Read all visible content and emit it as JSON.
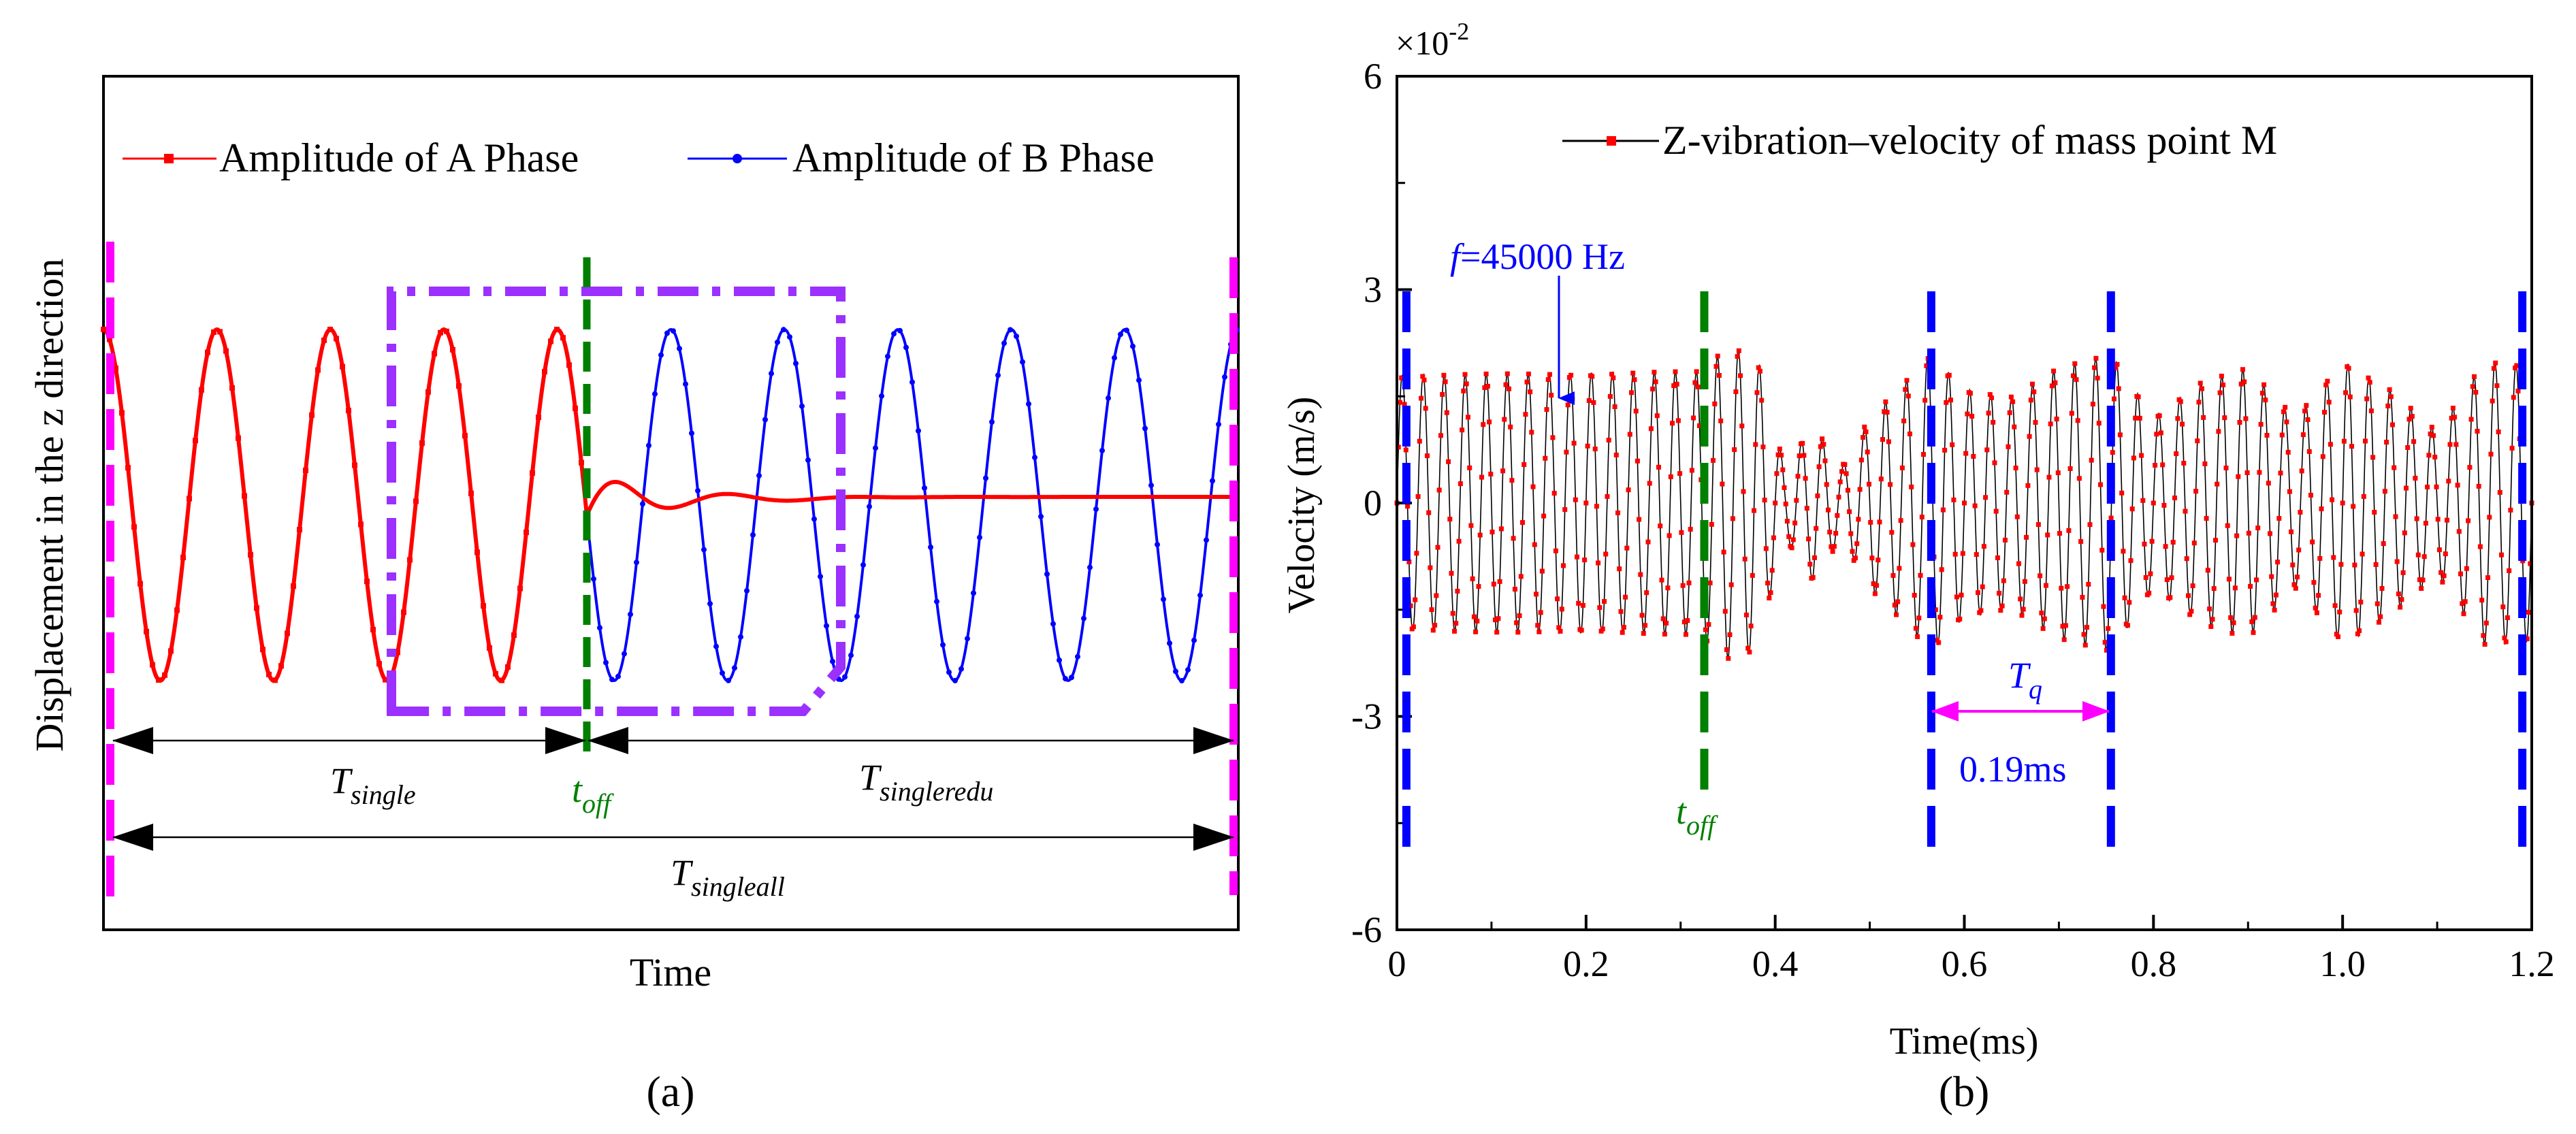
{
  "chart_data": [
    {
      "panel": "a",
      "type": "line",
      "xlabel": "Time",
      "ylabel": "Displacement in the z direction",
      "panel_label": "(a)",
      "legend_placement": "top",
      "series": [
        {
          "name": "Amplitude of A Phase",
          "color": "#ff0000",
          "marker": "square",
          "description_values": {
            "periods_before_off": 4,
            "phase_offset_periods": 0.75,
            "post_off_decay_cycles": 4
          }
        },
        {
          "name": "Amplitude of B Phase",
          "color": "#0000ff",
          "marker": "dot",
          "description_values": {
            "periods_total": 10
          }
        }
      ],
      "annotations": {
        "t_single": {
          "main": "T",
          "sub": "single"
        },
        "t_off": {
          "main": "t",
          "sub": "off"
        },
        "t_singleredu": {
          "main": "T",
          "sub": "singleredu"
        },
        "t_singleall": {
          "main": "T",
          "sub": "singleall"
        }
      },
      "colors": {
        "off_marker": "#008000",
        "box": "#9b30ff",
        "edge_marker": "#ff00ff",
        "arrow": "#000000"
      }
    },
    {
      "panel": "b",
      "type": "line",
      "xlabel": "Time(ms)",
      "ylabel": "Velocity (m/s)",
      "y_multiplier": "×10",
      "y_multiplier_exp": "-2",
      "panel_label": "(b)",
      "xlim": [
        0,
        1.2
      ],
      "ylim": [
        -6,
        6
      ],
      "x_ticks": [
        "0",
        "0.2",
        "0.4",
        "0.6",
        "0.8",
        "1.0",
        "1.2"
      ],
      "y_ticks": [
        "6",
        "3",
        "0",
        "-3",
        "-6"
      ],
      "x_tick_values": [
        0,
        0.2,
        0.4,
        0.6,
        0.8,
        1.0,
        1.2
      ],
      "y_tick_values": [
        6,
        3,
        0,
        -3,
        -6
      ],
      "series": [
        {
          "name": "Z-vibration–velocity of mass point M",
          "color": "#ff0000",
          "line_color": "#000000",
          "frequency_hz": 45000,
          "envelope": {
            "x": [
              0,
              0.32,
              0.35,
              0.38,
              0.41,
              0.44,
              0.47,
              0.5,
              0.53,
              0.565,
              0.6,
              0.65,
              0.7,
              0.755,
              0.8,
              0.85,
              0.9,
              0.95,
              1.0,
              1.05,
              1.1,
              1.15,
              1.2
            ],
            "y": [
              1.8,
              1.85,
              2.2,
              2.1,
              0.5,
              1.1,
              0.5,
              1.2,
              1.6,
              2.1,
              1.6,
              1.5,
              1.9,
              2.1,
              1.2,
              1.7,
              1.9,
              1.2,
              2.0,
              1.6,
              1.0,
              2.0,
              1.95
            ]
          }
        }
      ],
      "annotations": {
        "frequency": {
          "prefix": "f",
          "value": "=45000 Hz"
        },
        "t_off": {
          "main": "t",
          "sub": "off"
        },
        "t_q": {
          "main": "T",
          "sub": "q"
        },
        "period": "0.19ms"
      },
      "markers_x": {
        "blue": [
          0.01,
          0.565,
          0.755,
          1.19
        ],
        "green": [
          0.325
        ]
      },
      "colors": {
        "blue_marker": "#0000ff",
        "green_marker": "#008000",
        "arrow_tq": "#ff00ff",
        "text_blue": "#0000ff",
        "text_green": "#008000"
      }
    }
  ]
}
